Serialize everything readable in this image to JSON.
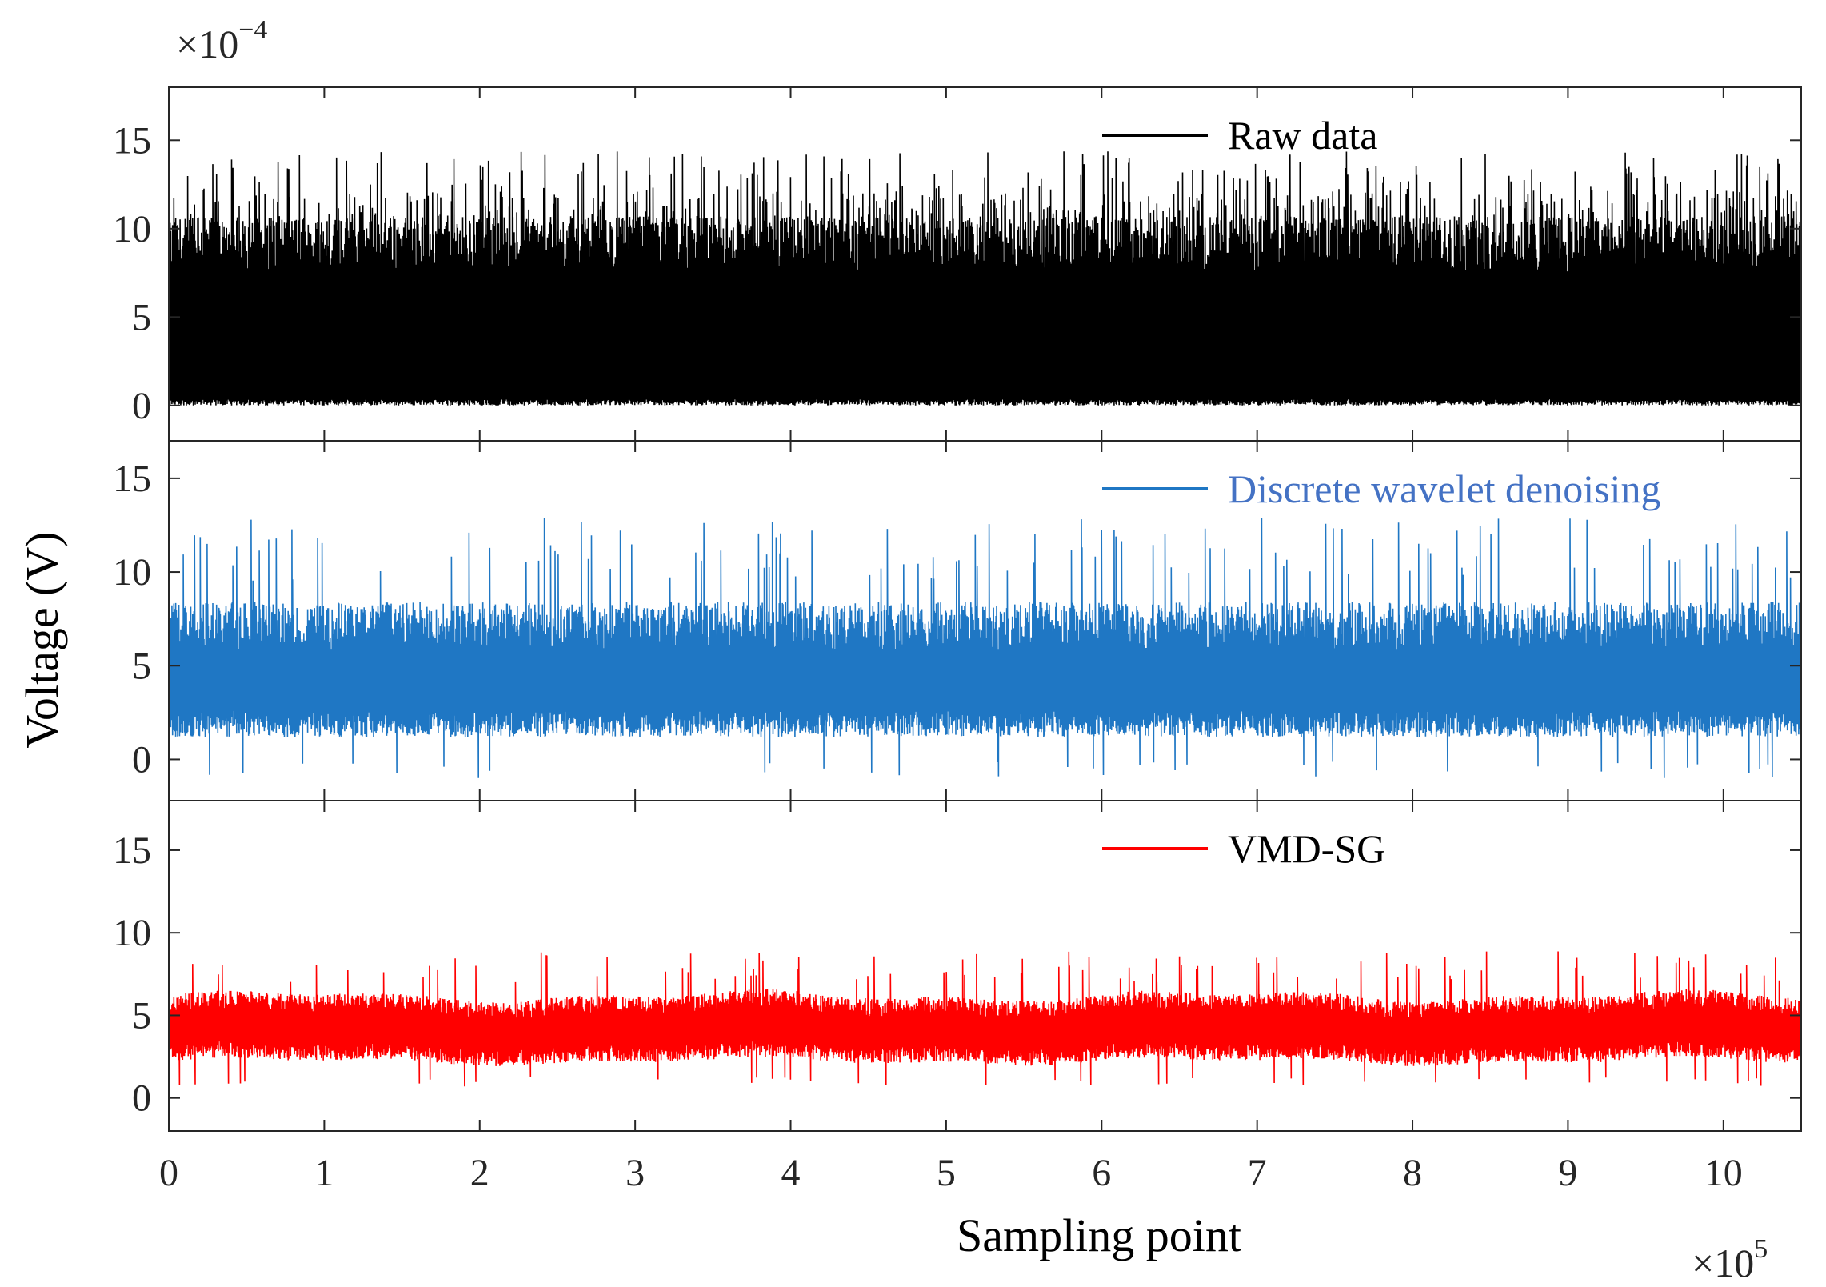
{
  "chart_data": {
    "type": "line",
    "layout": "three vertically stacked panels sharing the x-axis",
    "xlabel": "Sampling point",
    "ylabel": "Voltage (V)",
    "x_multiplier": "×10",
    "x_multiplier_exp": "5",
    "y_multiplier": "×10",
    "y_multiplier_exp": "−4",
    "xlim": [
      0,
      10.5
    ],
    "x_ticks": [
      0,
      1,
      2,
      3,
      4,
      5,
      6,
      7,
      8,
      9,
      10
    ],
    "x_tick_labels": [
      "0",
      "1",
      "2",
      "3",
      "4",
      "5",
      "6",
      "7",
      "8",
      "9",
      "10"
    ],
    "grid": false,
    "legend_position": "top-right of each panel",
    "panels": [
      {
        "series_name": "Raw data",
        "color": "#000000",
        "legend_text_color": "#000000",
        "ylim": [
          -2,
          18
        ],
        "y_ticks": [
          0,
          5,
          10,
          15
        ],
        "y_tick_labels": [
          "0",
          "5",
          "10",
          "15"
        ],
        "envelope": {
          "base": 0,
          "mean_high": 9.0,
          "typical_peak": 11.5,
          "max_peak": 14.5
        }
      },
      {
        "series_name": "Discrete wavelet denoising",
        "color": "#1f77c4",
        "legend_text_color": "#4472c4",
        "ylim": [
          -2.2,
          17
        ],
        "y_ticks": [
          0,
          5,
          10,
          15
        ],
        "y_tick_labels": [
          "0",
          "5",
          "10",
          "15"
        ],
        "envelope": {
          "mean_low": 1.5,
          "mean_high": 7.0,
          "min_dip": -1.0,
          "max_peak": 12.9
        }
      },
      {
        "series_name": "VMD-SG",
        "color": "#ff0000",
        "legend_text_color": "#000000",
        "ylim": [
          -2,
          18
        ],
        "y_ticks": [
          0,
          5,
          10,
          15
        ],
        "y_tick_labels": [
          "0",
          "5",
          "10",
          "15"
        ],
        "envelope": {
          "mean_low": 2.0,
          "mean_high": 5.5,
          "min_dip": 0.7,
          "max_peak": 8.9
        }
      }
    ]
  }
}
